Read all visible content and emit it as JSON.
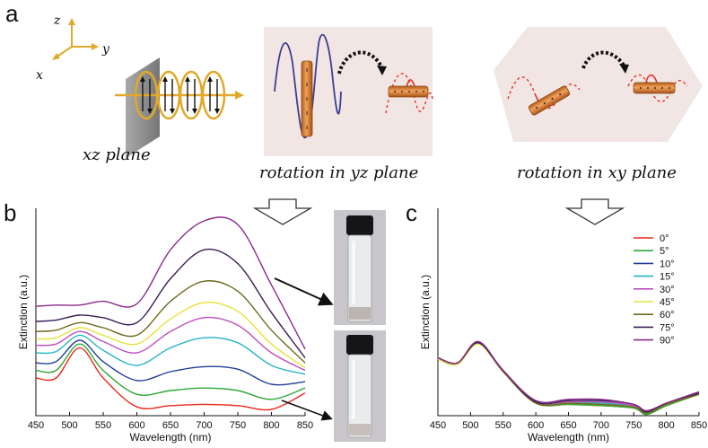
{
  "panels": {
    "a": "a",
    "b": "b",
    "c": "c"
  },
  "schematic": {
    "axes": {
      "z": "z",
      "y": "y",
      "x": "x"
    },
    "captions": {
      "xz": "xz plane",
      "yz": "rotation in yz plane",
      "xy": "rotation in xy plane"
    }
  },
  "chart_data": [
    {
      "type": "line",
      "panel": "b",
      "xlabel": "Wavelength (nm)",
      "ylabel": "Extinction (a.u.)",
      "xlim": [
        450,
        850
      ],
      "xticks": [
        "450",
        "500",
        "550",
        "600",
        "650",
        "700",
        "750",
        "800",
        "850"
      ],
      "series": [
        {
          "color": "#e8291d",
          "x": [
            450,
            480,
            515,
            550,
            600,
            650,
            700,
            750,
            800,
            850
          ],
          "y": [
            0.3,
            0.3,
            0.54,
            0.3,
            0.07,
            0.08,
            0.09,
            0.08,
            0.05,
            0.18
          ]
        },
        {
          "color": "#2fa836",
          "x": [
            450,
            480,
            515,
            550,
            600,
            650,
            700,
            750,
            800,
            850
          ],
          "y": [
            0.36,
            0.36,
            0.57,
            0.36,
            0.17,
            0.2,
            0.22,
            0.2,
            0.13,
            0.22
          ]
        },
        {
          "color": "#223d99",
          "x": [
            450,
            480,
            515,
            550,
            600,
            650,
            700,
            750,
            800,
            850
          ],
          "y": [
            0.42,
            0.43,
            0.6,
            0.43,
            0.28,
            0.35,
            0.39,
            0.37,
            0.25,
            0.27
          ]
        },
        {
          "color": "#27b5c4",
          "x": [
            450,
            480,
            515,
            550,
            600,
            650,
            700,
            750,
            800,
            850
          ],
          "y": [
            0.5,
            0.51,
            0.64,
            0.52,
            0.4,
            0.54,
            0.62,
            0.58,
            0.4,
            0.33
          ]
        },
        {
          "color": "#c04fc0",
          "x": [
            450,
            480,
            515,
            550,
            600,
            650,
            700,
            750,
            800,
            850
          ],
          "y": [
            0.56,
            0.57,
            0.67,
            0.59,
            0.5,
            0.67,
            0.78,
            0.72,
            0.5,
            0.36
          ]
        },
        {
          "color": "#e6e23a",
          "x": [
            450,
            480,
            515,
            550,
            600,
            650,
            700,
            750,
            800,
            850
          ],
          "y": [
            0.61,
            0.62,
            0.7,
            0.64,
            0.57,
            0.77,
            0.9,
            0.83,
            0.57,
            0.38
          ]
        },
        {
          "color": "#6c6a1d",
          "x": [
            450,
            480,
            515,
            550,
            600,
            650,
            700,
            750,
            800,
            850
          ],
          "y": [
            0.67,
            0.68,
            0.74,
            0.7,
            0.64,
            0.91,
            1.07,
            0.99,
            0.68,
            0.42
          ]
        },
        {
          "color": "#3a1f55",
          "x": [
            450,
            480,
            515,
            550,
            600,
            650,
            700,
            750,
            800,
            850
          ],
          "y": [
            0.75,
            0.76,
            0.8,
            0.78,
            0.74,
            1.09,
            1.32,
            1.21,
            0.82,
            0.46
          ]
        },
        {
          "color": "#8a2a8c",
          "x": [
            450,
            480,
            515,
            550,
            600,
            650,
            700,
            750,
            800,
            850
          ],
          "y": [
            0.87,
            0.88,
            0.88,
            0.91,
            0.89,
            1.32,
            1.55,
            1.52,
            1.04,
            0.53
          ]
        }
      ]
    },
    {
      "type": "line",
      "panel": "c",
      "xlabel": "Wavelength (nm)",
      "ylabel": "Extinction (a.u.)",
      "xlim": [
        450,
        850
      ],
      "xticks": [
        "450",
        "500",
        "550",
        "600",
        "650",
        "700",
        "750",
        "800",
        "850"
      ],
      "series": [
        {
          "name": "0°",
          "color": "#e8291d",
          "x": [
            450,
            480,
            512,
            550,
            600,
            650,
            700,
            750,
            770,
            800,
            850
          ],
          "y": [
            0.46,
            0.41,
            0.58,
            0.35,
            0.1,
            0.09,
            0.08,
            0.06,
            0.01,
            0.08,
            0.17
          ]
        },
        {
          "name": "5°",
          "color": "#2fa836",
          "x": [
            450,
            480,
            512,
            550,
            600,
            650,
            700,
            750,
            770,
            800,
            850
          ],
          "y": [
            0.45,
            0.41,
            0.58,
            0.35,
            0.1,
            0.09,
            0.08,
            0.06,
            0.01,
            0.08,
            0.17
          ]
        },
        {
          "name": "10°",
          "color": "#223d99",
          "x": [
            450,
            480,
            512,
            550,
            600,
            650,
            700,
            750,
            770,
            800,
            850
          ],
          "y": [
            0.46,
            0.42,
            0.58,
            0.35,
            0.1,
            0.1,
            0.1,
            0.07,
            0.02,
            0.09,
            0.18
          ]
        },
        {
          "name": "15°",
          "color": "#27b5c4",
          "x": [
            450,
            480,
            512,
            550,
            600,
            650,
            700,
            750,
            770,
            800,
            850
          ],
          "y": [
            0.46,
            0.42,
            0.58,
            0.35,
            0.1,
            0.1,
            0.1,
            0.07,
            0.02,
            0.09,
            0.18
          ]
        },
        {
          "name": "30°",
          "color": "#c04fc0",
          "x": [
            450,
            480,
            512,
            550,
            600,
            650,
            700,
            750,
            770,
            800,
            850
          ],
          "y": [
            0.46,
            0.42,
            0.58,
            0.35,
            0.11,
            0.11,
            0.11,
            0.08,
            0.03,
            0.1,
            0.18
          ]
        },
        {
          "name": "45°",
          "color": "#e6e23a",
          "x": [
            450,
            480,
            512,
            550,
            600,
            650,
            700,
            750,
            770,
            800,
            850
          ],
          "y": [
            0.45,
            0.41,
            0.57,
            0.35,
            0.1,
            0.1,
            0.09,
            0.07,
            0.02,
            0.09,
            0.17
          ]
        },
        {
          "name": "60°",
          "color": "#6c6a1d",
          "x": [
            450,
            480,
            512,
            550,
            600,
            650,
            700,
            750,
            770,
            800,
            850
          ],
          "y": [
            0.46,
            0.42,
            0.58,
            0.35,
            0.1,
            0.1,
            0.09,
            0.07,
            0.02,
            0.09,
            0.17
          ]
        },
        {
          "name": "75°",
          "color": "#3a1f55",
          "x": [
            450,
            480,
            512,
            550,
            600,
            650,
            700,
            750,
            770,
            800,
            850
          ],
          "y": [
            0.46,
            0.42,
            0.58,
            0.36,
            0.11,
            0.12,
            0.12,
            0.09,
            0.03,
            0.1,
            0.18
          ]
        },
        {
          "name": "90°",
          "color": "#8a2a8c",
          "x": [
            450,
            480,
            512,
            550,
            600,
            650,
            700,
            750,
            770,
            800,
            850
          ],
          "y": [
            0.46,
            0.42,
            0.59,
            0.36,
            0.12,
            0.13,
            0.13,
            0.09,
            0.04,
            0.1,
            0.19
          ]
        }
      ]
    }
  ],
  "colors": {
    "rod": "#d9803a",
    "ring": "#e0a92a",
    "wave_blue": "#3d3f8f",
    "wave_red": "#e3322c",
    "panel_bg": "#f1e6e4"
  }
}
